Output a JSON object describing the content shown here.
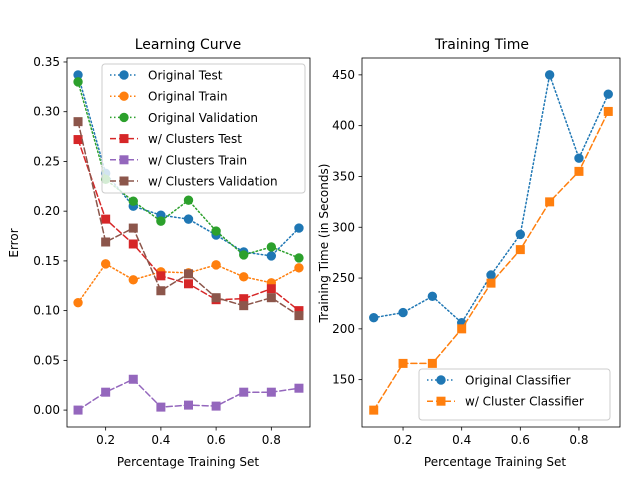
{
  "chart_data": [
    {
      "type": "line",
      "title": "Learning Curve",
      "xlabel": "Percentage Training Set",
      "ylabel": "Error",
      "xlim": [
        0.06,
        0.94
      ],
      "ylim": [
        -0.017,
        0.354
      ],
      "x": [
        0.1,
        0.2,
        0.3,
        0.4,
        0.5,
        0.6,
        0.7,
        0.8,
        0.9
      ],
      "xticks": [
        "0.2",
        "0.4",
        "0.6",
        "0.8"
      ],
      "yticks": [
        "0.00",
        "0.05",
        "0.10",
        "0.15",
        "0.20",
        "0.25",
        "0.30",
        "0.35"
      ],
      "legend_position": "top-right",
      "grid": false,
      "series": [
        {
          "name": "Original Test",
          "color": "#1f77b4",
          "dash": "dotted",
          "marker": "circle",
          "values": [
            0.337,
            0.238,
            0.205,
            0.196,
            0.192,
            0.176,
            0.159,
            0.155,
            0.183
          ]
        },
        {
          "name": "Original Train",
          "color": "#ff7f0e",
          "dash": "dotted",
          "marker": "circle",
          "values": [
            0.108,
            0.147,
            0.131,
            0.139,
            0.138,
            0.146,
            0.134,
            0.128,
            0.143
          ]
        },
        {
          "name": "Original Validation",
          "color": "#2ca02c",
          "dash": "dotted",
          "marker": "circle",
          "values": [
            0.33,
            0.232,
            0.21,
            0.19,
            0.211,
            0.18,
            0.156,
            0.164,
            0.153
          ]
        },
        {
          "name": "w/ Clusters Test",
          "color": "#d62728",
          "dash": "dashed",
          "marker": "square",
          "values": [
            0.272,
            0.192,
            0.167,
            0.135,
            0.127,
            0.111,
            0.112,
            0.122,
            0.1
          ]
        },
        {
          "name": "w/ Clusters Train",
          "color": "#9467bd",
          "dash": "dashed",
          "marker": "square",
          "values": [
            0.0,
            0.018,
            0.031,
            0.003,
            0.005,
            0.004,
            0.018,
            0.018,
            0.022
          ]
        },
        {
          "name": "w/ Clusters Validation",
          "color": "#8c564b",
          "dash": "dashed",
          "marker": "square",
          "values": [
            0.29,
            0.169,
            0.183,
            0.12,
            0.137,
            0.113,
            0.105,
            0.113,
            0.095
          ]
        }
      ]
    },
    {
      "type": "line",
      "title": "Training Time",
      "xlabel": "Percentage Training Set",
      "ylabel": "Training Time (in Seconds)",
      "xlim": [
        0.06,
        0.94
      ],
      "ylim": [
        103.4,
        466.6
      ],
      "x": [
        0.1,
        0.2,
        0.3,
        0.4,
        0.5,
        0.6,
        0.7,
        0.8,
        0.9
      ],
      "xticks": [
        "0.2",
        "0.4",
        "0.6",
        "0.8"
      ],
      "yticks": [
        "150",
        "200",
        "250",
        "300",
        "350",
        "400",
        "450"
      ],
      "legend_position": "bottom-right",
      "grid": false,
      "series": [
        {
          "name": "Original Classifier",
          "color": "#1f77b4",
          "dash": "dotted",
          "marker": "circle",
          "values": [
            211,
            216,
            232,
            206,
            253,
            293,
            450,
            368,
            431
          ]
        },
        {
          "name": "w/ Cluster Classifier",
          "color": "#ff7f0e",
          "dash": "dashed",
          "marker": "square",
          "values": [
            120,
            166,
            166,
            200,
            245,
            278,
            325,
            355,
            414
          ]
        }
      ]
    }
  ]
}
